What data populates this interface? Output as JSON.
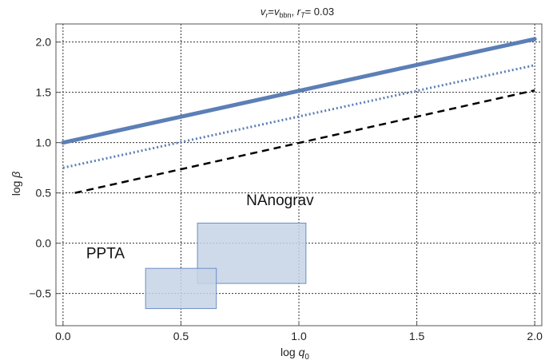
{
  "chart_data": {
    "type": "line",
    "title_parts": {
      "v": "v",
      "r_sub": "r",
      "eq": "=",
      "v2": "v",
      "bbn_sub": "bbn",
      "comma": ", ",
      "r2": "r",
      "T_sub": "T",
      "rest": "= 0.03"
    },
    "xlabel_parts": {
      "main": "log ",
      "var": "q",
      "sub": "0"
    },
    "ylabel_parts": {
      "main": "log ",
      "var": "β"
    },
    "xlim": [
      -0.03,
      2.03
    ],
    "ylim": [
      -0.82,
      2.18
    ],
    "x_ticks": [
      0.0,
      0.5,
      1.0,
      1.5,
      2.0
    ],
    "x_tick_labels": [
      "0.0",
      "0.5",
      "1.0",
      "1.5",
      "2.0"
    ],
    "y_ticks": [
      -0.5,
      0.0,
      0.5,
      1.0,
      1.5,
      2.0
    ],
    "y_tick_labels": [
      "−0.5",
      "0.0",
      "0.5",
      "1.0",
      "1.5",
      "2.0"
    ],
    "grid": true,
    "grid_style": "dotted",
    "series": [
      {
        "style": "solid",
        "color": "#5b7fb6",
        "x": [
          0.0,
          2.0
        ],
        "y": [
          1.0,
          2.03
        ]
      },
      {
        "style": "dotted",
        "color": "#5b7fb6",
        "x": [
          0.0,
          2.0
        ],
        "y": [
          0.75,
          1.77
        ]
      },
      {
        "style": "dashed",
        "color": "#000000",
        "x": [
          0.05,
          2.0
        ],
        "y": [
          0.5,
          1.52
        ]
      }
    ],
    "regions": [
      {
        "label": "NAnograv",
        "x": [
          0.57,
          1.03
        ],
        "y": [
          -0.4,
          0.2
        ],
        "label_at": [
          0.92,
          0.38
        ]
      },
      {
        "label": "PPTA",
        "x": [
          0.35,
          0.65
        ],
        "y": [
          -0.65,
          -0.25
        ],
        "label_at": [
          0.18,
          -0.15
        ]
      }
    ],
    "region_fill": "#c6d3e6",
    "region_stroke": "#6d8fc4"
  }
}
